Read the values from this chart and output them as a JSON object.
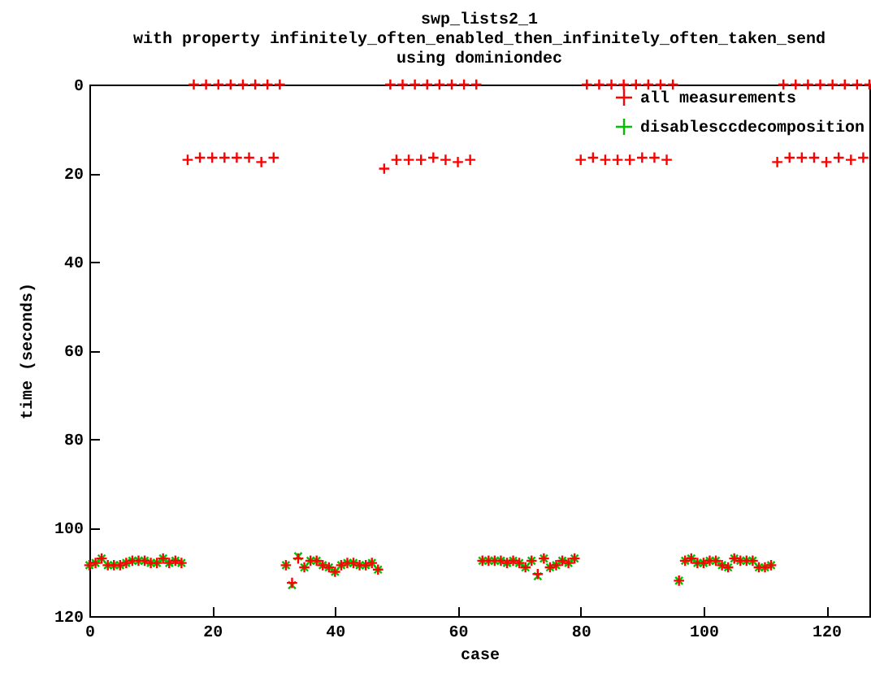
{
  "chart_data": {
    "type": "scatter",
    "title": "swp_lists2_1",
    "subtitle": "with property infinitely_often_enabled_then_infinitely_often_taken_send\nusing dominiondec",
    "xlabel": "case",
    "ylabel": "time (seconds)",
    "xlim": [
      0,
      127
    ],
    "xticks": [
      0,
      20,
      40,
      60,
      80,
      100,
      120
    ],
    "ylim": [
      120,
      0
    ],
    "yticks": [
      0,
      20,
      40,
      60,
      80,
      100,
      120
    ],
    "legend": "top right",
    "marker": "cross",
    "series": [
      {
        "name": "all measurements",
        "color": "#ff0000",
        "x": [
          0,
          1,
          2,
          3,
          4,
          5,
          6,
          7,
          8,
          9,
          10,
          11,
          12,
          13,
          14,
          15,
          16,
          17,
          18,
          19,
          20,
          21,
          22,
          23,
          24,
          25,
          26,
          27,
          28,
          29,
          30,
          31,
          32,
          33,
          34,
          35,
          36,
          37,
          38,
          39,
          40,
          41,
          42,
          43,
          44,
          45,
          46,
          47,
          48,
          49,
          50,
          51,
          52,
          53,
          54,
          55,
          56,
          57,
          58,
          59,
          60,
          61,
          62,
          63,
          64,
          65,
          66,
          67,
          68,
          69,
          70,
          71,
          72,
          73,
          74,
          75,
          76,
          77,
          78,
          79,
          80,
          81,
          82,
          83,
          84,
          85,
          86,
          87,
          88,
          89,
          90,
          91,
          92,
          93,
          94,
          95,
          96,
          97,
          98,
          99,
          100,
          101,
          102,
          103,
          104,
          105,
          106,
          107,
          108,
          109,
          110,
          111,
          112,
          113,
          114,
          115,
          116,
          117,
          118,
          119,
          120,
          121,
          122,
          123,
          124,
          125,
          126,
          127
        ],
        "values": [
          108.5,
          108,
          107,
          108.5,
          108.5,
          108.5,
          108,
          107.5,
          107.5,
          107.5,
          108,
          108,
          107,
          108,
          107.5,
          108,
          17,
          0,
          16.5,
          0,
          16.5,
          0,
          16.5,
          0,
          16.5,
          0,
          16.5,
          0,
          17.5,
          0,
          16.5,
          0,
          108.5,
          112.5,
          107,
          109,
          107.5,
          107.5,
          108.5,
          109,
          110,
          108.5,
          108,
          108,
          108.5,
          108.5,
          108,
          109.5,
          19,
          0,
          17,
          0,
          17,
          0,
          17,
          0,
          16.5,
          0,
          17,
          0,
          17.5,
          0,
          17,
          0,
          107.5,
          107.5,
          107.5,
          107.5,
          108,
          107.5,
          108,
          109,
          107.5,
          110.5,
          107,
          109,
          108.5,
          107.5,
          108,
          107,
          17,
          0,
          16.5,
          0,
          17,
          0,
          17,
          0,
          17,
          0,
          16.5,
          0,
          16.5,
          0,
          17,
          0,
          112,
          107.5,
          107,
          108,
          108,
          107.5,
          107.5,
          108.5,
          109,
          107,
          107.5,
          107.5,
          107.5,
          109,
          109,
          108.5,
          17.5,
          0,
          16.5,
          0,
          16.5,
          0,
          16.5,
          0,
          17.5,
          0,
          16.5,
          0,
          17,
          0,
          16.5,
          0
        ]
      },
      {
        "name": "disablesccdecomposition",
        "color": "#00c000",
        "x": [
          0,
          1,
          2,
          3,
          4,
          5,
          6,
          7,
          8,
          9,
          10,
          11,
          12,
          13,
          14,
          15,
          32,
          33,
          34,
          35,
          36,
          37,
          38,
          39,
          40,
          41,
          42,
          43,
          44,
          45,
          46,
          47,
          64,
          65,
          66,
          67,
          68,
          69,
          70,
          71,
          72,
          73,
          74,
          75,
          76,
          77,
          78,
          79,
          96,
          97,
          98,
          99,
          100,
          101,
          102,
          103,
          104,
          105,
          106,
          107,
          108,
          109,
          110,
          111
        ],
        "values": [
          108.5,
          108,
          107,
          108.5,
          108.5,
          108.5,
          108,
          107.5,
          107.5,
          107.5,
          108,
          108,
          107,
          108,
          107.5,
          108,
          108.5,
          113,
          106.5,
          109,
          107.5,
          107.5,
          108.5,
          109,
          110,
          108.5,
          108,
          108,
          108.5,
          108.5,
          108,
          109.5,
          107.5,
          107.5,
          107.5,
          107.5,
          108,
          107.5,
          108,
          109,
          107.5,
          111,
          107,
          109,
          108.5,
          107.5,
          108,
          107,
          112,
          107.5,
          107,
          108,
          108,
          107.5,
          107.5,
          108.5,
          109,
          107,
          107.5,
          107.5,
          107.5,
          109,
          109,
          108.5
        ]
      }
    ]
  }
}
